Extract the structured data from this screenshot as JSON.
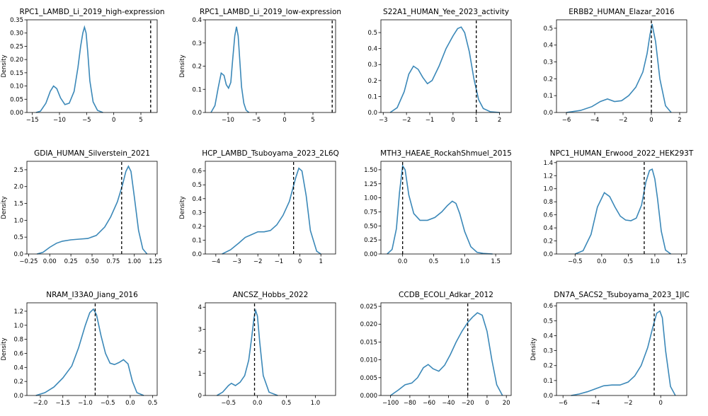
{
  "chart_data": [
    {
      "type": "line",
      "title": "RPC1_LAMBD_Li_2019_high-expression",
      "ylabel": "Density",
      "xlim": [
        -16,
        8
      ],
      "ylim": [
        0,
        0.35
      ],
      "xticks": [
        -15,
        -10,
        -5,
        0,
        5
      ],
      "yticks": [
        0.0,
        0.05,
        0.1,
        0.15,
        0.2,
        0.25,
        0.3,
        0.35
      ],
      "ref_x": 6.8,
      "x": [
        -14.3,
        -13.5,
        -12.5,
        -11.7,
        -11.1,
        -10.5,
        -9.8,
        -9.0,
        -8.2,
        -7.3,
        -6.6,
        -6.1,
        -5.7,
        -5.4,
        -5.1,
        -4.8,
        -4.4,
        -3.8,
        -3.0,
        -2.0
      ],
      "y": [
        0.0,
        0.005,
        0.035,
        0.08,
        0.1,
        0.09,
        0.055,
        0.03,
        0.035,
        0.08,
        0.17,
        0.25,
        0.3,
        0.322,
        0.3,
        0.23,
        0.12,
        0.04,
        0.008,
        0.0
      ]
    },
    {
      "type": "line",
      "title": "RPC1_LAMBD_Li_2019_low-expression",
      "ylabel": "Density",
      "xlim": [
        -14,
        9
      ],
      "ylim": [
        0,
        0.4
      ],
      "xticks": [
        -10,
        -5,
        0,
        5
      ],
      "yticks": [
        0.0,
        0.1,
        0.2,
        0.3,
        0.4
      ],
      "ref_x": 8.4,
      "x": [
        -13.0,
        -12.3,
        -11.7,
        -11.2,
        -10.7,
        -10.3,
        -9.9,
        -9.5,
        -9.2,
        -8.8,
        -8.5,
        -8.2,
        -7.9,
        -7.6,
        -7.2,
        -6.8,
        -6.3
      ],
      "y": [
        0.0,
        0.03,
        0.11,
        0.17,
        0.16,
        0.12,
        0.105,
        0.13,
        0.22,
        0.33,
        0.37,
        0.33,
        0.22,
        0.11,
        0.04,
        0.01,
        0.0
      ]
    },
    {
      "type": "line",
      "title": "S22A1_HUMAN_Yee_2023_activity",
      "ylabel": "",
      "xlim": [
        -3.1,
        2.5
      ],
      "ylim": [
        0,
        0.58
      ],
      "xticks": [
        -3,
        -2,
        -1,
        0,
        1,
        2
      ],
      "yticks": [
        0.0,
        0.1,
        0.2,
        0.3,
        0.4,
        0.5
      ],
      "ref_x": 1.0,
      "x": [
        -2.7,
        -2.4,
        -2.1,
        -1.9,
        -1.7,
        -1.5,
        -1.3,
        -1.1,
        -0.9,
        -0.6,
        -0.3,
        0.0,
        0.2,
        0.35,
        0.5,
        0.7,
        0.9,
        1.1,
        1.3,
        1.6,
        2.0
      ],
      "y": [
        0.0,
        0.03,
        0.13,
        0.24,
        0.29,
        0.27,
        0.22,
        0.18,
        0.2,
        0.29,
        0.4,
        0.48,
        0.525,
        0.535,
        0.5,
        0.38,
        0.21,
        0.08,
        0.025,
        0.005,
        0.0
      ]
    },
    {
      "type": "line",
      "title": "ERBB2_HUMAN_Elazar_2016",
      "ylabel": "",
      "xlim": [
        -6.7,
        2.5
      ],
      "ylim": [
        0,
        0.55
      ],
      "xticks": [
        -6,
        -4,
        -2,
        0,
        2
      ],
      "yticks": [
        0.0,
        0.1,
        0.2,
        0.3,
        0.4,
        0.5
      ],
      "ref_x": 0.0,
      "x": [
        -6.0,
        -5.0,
        -4.2,
        -3.6,
        -3.1,
        -2.6,
        -2.1,
        -1.6,
        -1.1,
        -0.6,
        -0.3,
        -0.1,
        0.05,
        0.3,
        0.6,
        1.0,
        1.4
      ],
      "y": [
        0.0,
        0.012,
        0.035,
        0.065,
        0.08,
        0.065,
        0.07,
        0.1,
        0.15,
        0.24,
        0.35,
        0.46,
        0.525,
        0.42,
        0.2,
        0.04,
        0.0
      ]
    },
    {
      "type": "line",
      "title": "GDIA_HUMAN_Silverstein_2021",
      "ylabel": "Density",
      "xlim": [
        -0.27,
        1.27
      ],
      "ylim": [
        0,
        2.75
      ],
      "xticks": [
        -0.25,
        0.0,
        0.25,
        0.5,
        0.75,
        1.0,
        1.25
      ],
      "yticks": [
        0.0,
        0.5,
        1.0,
        1.5,
        2.0,
        2.5
      ],
      "ref_x": 0.85,
      "x": [
        -0.15,
        -0.08,
        0.0,
        0.08,
        0.15,
        0.25,
        0.35,
        0.45,
        0.55,
        0.65,
        0.72,
        0.8,
        0.86,
        0.9,
        0.93,
        0.96,
        1.0,
        1.05,
        1.1,
        1.15
      ],
      "y": [
        0.0,
        0.05,
        0.2,
        0.32,
        0.38,
        0.42,
        0.44,
        0.46,
        0.55,
        0.8,
        1.1,
        1.55,
        2.05,
        2.45,
        2.6,
        2.45,
        1.7,
        0.7,
        0.15,
        0.0
      ]
    },
    {
      "type": "line",
      "title": "HCP_LAMBD_Tsuboyama_2023_2L6Q",
      "ylabel": "Density",
      "xlim": [
        -4.5,
        1.7
      ],
      "ylim": [
        0,
        0.67
      ],
      "xticks": [
        -4,
        -3,
        -2,
        -1,
        0,
        1
      ],
      "yticks": [
        0.0,
        0.1,
        0.2,
        0.3,
        0.4,
        0.5,
        0.6
      ],
      "ref_x": -0.3,
      "x": [
        -3.7,
        -3.3,
        -2.9,
        -2.6,
        -2.3,
        -2.0,
        -1.7,
        -1.4,
        -1.1,
        -0.8,
        -0.5,
        -0.2,
        -0.05,
        0.1,
        0.3,
        0.5,
        0.8,
        1.0
      ],
      "y": [
        0.0,
        0.03,
        0.08,
        0.12,
        0.14,
        0.16,
        0.16,
        0.17,
        0.21,
        0.28,
        0.38,
        0.55,
        0.62,
        0.6,
        0.42,
        0.17,
        0.02,
        0.0
      ]
    },
    {
      "type": "line",
      "title": "MTH3_HAEAE_RockahShmuel_2015",
      "ylabel": "",
      "xlim": [
        -0.35,
        1.75
      ],
      "ylim": [
        0,
        1.65
      ],
      "xticks": [
        0.0,
        0.5,
        1.0,
        1.5
      ],
      "yticks": [
        0.0,
        0.25,
        0.5,
        0.75,
        1.0,
        1.25,
        1.5
      ],
      "ref_x": 0.0,
      "x": [
        -0.25,
        -0.17,
        -0.1,
        -0.05,
        0.0,
        0.04,
        0.1,
        0.18,
        0.28,
        0.4,
        0.52,
        0.63,
        0.72,
        0.8,
        0.86,
        0.92,
        1.0,
        1.1,
        1.2,
        1.3,
        1.45
      ],
      "y": [
        0.0,
        0.08,
        0.45,
        1.1,
        1.57,
        1.5,
        1.05,
        0.72,
        0.6,
        0.6,
        0.65,
        0.75,
        0.86,
        0.94,
        0.9,
        0.72,
        0.4,
        0.13,
        0.03,
        0.01,
        0.0
      ]
    },
    {
      "type": "line",
      "title": "NPC1_HUMAN_Erwood_2022_HEK293T",
      "ylabel": "",
      "xlim": [
        -0.85,
        1.6
      ],
      "ylim": [
        0,
        1.42
      ],
      "xticks": [
        -0.5,
        0.0,
        0.5,
        1.0,
        1.5
      ],
      "yticks": [
        0.0,
        0.2,
        0.4,
        0.6,
        0.8,
        1.0,
        1.2,
        1.4
      ],
      "ref_x": 0.8,
      "x": [
        -0.5,
        -0.35,
        -0.2,
        -0.08,
        0.05,
        0.15,
        0.25,
        0.35,
        0.45,
        0.55,
        0.65,
        0.75,
        0.83,
        0.9,
        0.95,
        1.0,
        1.05,
        1.12,
        1.2,
        1.3
      ],
      "y": [
        0.0,
        0.05,
        0.3,
        0.72,
        0.94,
        0.88,
        0.72,
        0.58,
        0.52,
        0.51,
        0.55,
        0.75,
        1.1,
        1.28,
        1.3,
        1.15,
        0.85,
        0.35,
        0.06,
        0.0
      ]
    },
    {
      "type": "line",
      "title": "NRAM_I33A0_Jiang_2016",
      "ylabel": "Density",
      "xlim": [
        -2.3,
        0.6
      ],
      "ylim": [
        0,
        1.32
      ],
      "xticks": [
        -2.0,
        -1.5,
        -1.0,
        -0.5,
        0.0,
        0.5
      ],
      "yticks": [
        0.0,
        0.2,
        0.4,
        0.6,
        0.8,
        1.0,
        1.2
      ],
      "ref_x": -0.78,
      "x": [
        -2.1,
        -1.9,
        -1.7,
        -1.5,
        -1.3,
        -1.15,
        -1.0,
        -0.9,
        -0.82,
        -0.75,
        -0.65,
        -0.55,
        -0.45,
        -0.35,
        -0.25,
        -0.15,
        -0.05,
        0.05,
        0.15,
        0.3
      ],
      "y": [
        0.0,
        0.04,
        0.12,
        0.25,
        0.42,
        0.68,
        1.0,
        1.18,
        1.23,
        1.15,
        0.85,
        0.6,
        0.46,
        0.44,
        0.47,
        0.51,
        0.45,
        0.2,
        0.04,
        0.0
      ]
    },
    {
      "type": "line",
      "title": "ANCSZ_Hobbs_2022",
      "ylabel": "",
      "xlim": [
        -0.9,
        1.35
      ],
      "ylim": [
        0,
        4.2
      ],
      "xticks": [
        -0.5,
        0.0,
        0.5,
        1.0
      ],
      "yticks": [
        0,
        1,
        2,
        3,
        4
      ],
      "ref_x": -0.05,
      "x": [
        -0.7,
        -0.6,
        -0.5,
        -0.45,
        -0.38,
        -0.3,
        -0.22,
        -0.15,
        -0.1,
        -0.06,
        -0.03,
        0.0,
        0.04,
        0.1,
        0.2,
        0.35
      ],
      "y": [
        0.0,
        0.15,
        0.45,
        0.55,
        0.45,
        0.6,
        0.9,
        1.6,
        2.6,
        3.5,
        3.85,
        3.6,
        2.4,
        0.9,
        0.15,
        0.0
      ]
    },
    {
      "type": "line",
      "title": "CCDB_ECOLI_Adkar_2012",
      "ylabel": "",
      "xlim": [
        -110,
        25
      ],
      "ylim": [
        0,
        0.026
      ],
      "xticks": [
        -100,
        -80,
        -60,
        -40,
        -20,
        0,
        20
      ],
      "yticks": [
        0.0,
        0.005,
        0.01,
        0.015,
        0.02,
        0.025
      ],
      "ref_x": -20,
      "x": [
        -100,
        -92,
        -85,
        -78,
        -72,
        -66,
        -61,
        -56,
        -50,
        -44,
        -38,
        -32,
        -26,
        -20,
        -15,
        -10,
        -5,
        0,
        5,
        10,
        16
      ],
      "y": [
        0.0,
        0.0015,
        0.003,
        0.0035,
        0.005,
        0.0078,
        0.0087,
        0.0075,
        0.0068,
        0.0085,
        0.0115,
        0.015,
        0.018,
        0.0205,
        0.022,
        0.0232,
        0.0225,
        0.018,
        0.01,
        0.003,
        0.0
      ]
    },
    {
      "type": "line",
      "title": "DN7A_SACS2_Tsuboyama_2023_1JIC",
      "ylabel": "Density",
      "xlim": [
        -6.4,
        1.6
      ],
      "ylim": [
        0,
        0.62
      ],
      "xticks": [
        -6,
        -4,
        -2,
        0
      ],
      "yticks": [
        0.0,
        0.1,
        0.2,
        0.3,
        0.4,
        0.5,
        0.6
      ],
      "ref_x": -0.4,
      "x": [
        -5.5,
        -5.0,
        -4.5,
        -4.0,
        -3.5,
        -3.0,
        -2.5,
        -2.0,
        -1.6,
        -1.2,
        -0.8,
        -0.5,
        -0.25,
        -0.05,
        0.1,
        0.3,
        0.6,
        0.9
      ],
      "y": [
        0.0,
        0.01,
        0.025,
        0.045,
        0.065,
        0.07,
        0.07,
        0.09,
        0.13,
        0.2,
        0.32,
        0.45,
        0.55,
        0.565,
        0.52,
        0.3,
        0.06,
        0.0
      ]
    }
  ]
}
